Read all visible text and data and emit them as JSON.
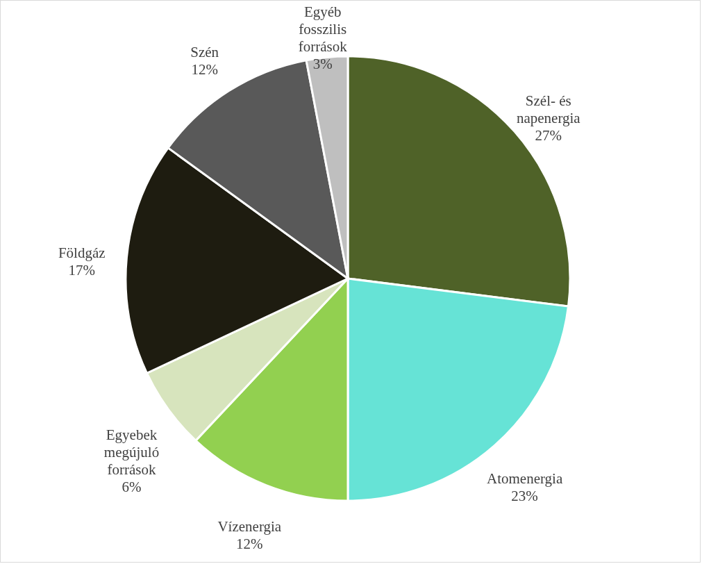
{
  "chart_data": {
    "type": "pie",
    "categories": [
      "Szél- és napenergia",
      "Atomenergia",
      "Vízenergia",
      "Egyebek megújuló források",
      "Földgáz",
      "Szén",
      "Egyéb fosszilis források"
    ],
    "values": [
      27,
      23,
      12,
      6,
      17,
      12,
      3
    ],
    "colors": [
      "#4f6228",
      "#66e3d6",
      "#92d050",
      "#d7e4bd",
      "#1e1c10",
      "#595959",
      "#bfbfbf"
    ],
    "value_labels": [
      "27%",
      "23%",
      "12%",
      "6%",
      "17%",
      "12%",
      "3%"
    ]
  }
}
